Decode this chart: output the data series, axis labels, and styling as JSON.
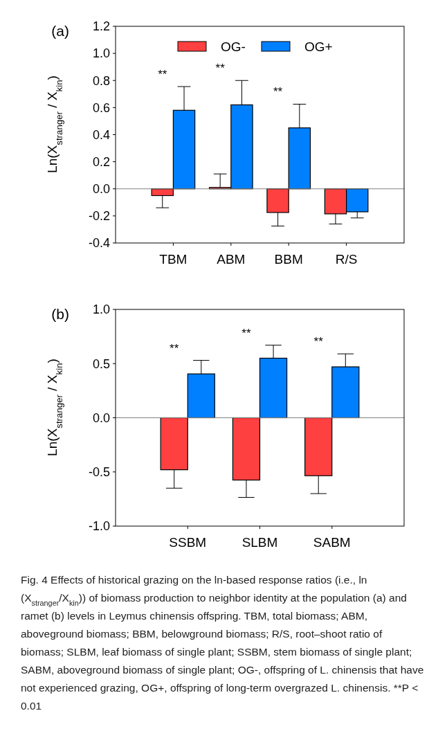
{
  "chart_data": [
    {
      "type": "bar",
      "title": "(a)",
      "ylabel": "Ln(X$_{stranger}$ / X$_{kin}$)",
      "categories": [
        "TBM",
        "ABM",
        "BBM",
        "R/S"
      ],
      "series": [
        {
          "name": "OG-",
          "color": "#ff4040",
          "values": [
            -0.05,
            0.01,
            -0.175,
            -0.185
          ],
          "errors": [
            [
              -0.14,
              -0.05
            ],
            [
              0.01,
              0.11
            ],
            [
              -0.275,
              -0.175
            ],
            [
              -0.26,
              -0.185
            ]
          ]
        },
        {
          "name": "OG+",
          "color": "#0080ff",
          "values": [
            0.58,
            0.62,
            0.45,
            -0.17
          ],
          "errors": [
            [
              0.58,
              0.755
            ],
            [
              0.62,
              0.8
            ],
            [
              0.45,
              0.625
            ],
            [
              -0.215,
              -0.17
            ]
          ]
        }
      ],
      "ylim": [
        -0.4,
        1.2
      ],
      "yticks": [
        {
          "value": -0.4,
          "label": "-0.4"
        },
        {
          "value": -0.2,
          "label": "-0.2"
        },
        {
          "value": 0,
          "label": "0.0"
        },
        {
          "value": 0.2,
          "label": "0.2"
        },
        {
          "value": 0.4,
          "label": "0.4"
        },
        {
          "value": 0.6,
          "label": "0.6"
        },
        {
          "value": 0.8,
          "label": "0.8"
        },
        {
          "value": 1,
          "label": "1.0"
        },
        {
          "value": 1.2,
          "label": "1.2"
        }
      ],
      "ref_lines": [
        {
          "axis": "y",
          "value": 0,
          "color": "#808080"
        }
      ],
      "annotations": [
        "**",
        "**",
        "**"
      ],
      "legend": "top",
      "grid": false
    },
    {
      "type": "bar",
      "title": "(b)",
      "ylabel": "Ln(X$_{stranger}$ / X$_{kin}$)",
      "categories": [
        "SSBM",
        "SLBM",
        "SABM"
      ],
      "series": [
        {
          "color": "#ff4040",
          "values": [
            -0.48,
            -0.575,
            -0.535
          ],
          "errors": [
            [
              -0.65,
              -0.48
            ],
            [
              -0.735,
              -0.575
            ],
            [
              -0.7,
              -0.535
            ]
          ]
        },
        {
          "color": "#0080ff",
          "values": [
            0.405,
            0.55,
            0.47
          ],
          "errors": [
            [
              0.405,
              0.53
            ],
            [
              0.55,
              0.67
            ],
            [
              0.47,
              0.59
            ]
          ]
        }
      ],
      "ylim": [
        -1,
        1
      ],
      "yticks": [
        {
          "value": -1,
          "label": "-1.0"
        },
        {
          "value": -0.5,
          "label": "-0.5"
        },
        {
          "value": 0,
          "label": "0.0"
        },
        {
          "value": 0.5,
          "label": "0.5"
        },
        {
          "value": 1,
          "label": "1.0"
        }
      ],
      "ref_lines": [
        {
          "axis": "y",
          "value": 0,
          "color": "#808080"
        }
      ],
      "annotations": [
        "**",
        "**",
        "**",
        "Fig. 4  Effects of historical grazing on the ln-based response ratios (i.e., ln (X$_{stranger}$/X$_{kin}$)) of biomass production to neighbor identity at the population (a) and ramet (b) levels in Leymus chinensis offspring. TBM, total biomass; ABM, aboveground biomass; BBM, belowground biomass; R/S, root–shoot ratio of biomass; SLBM, leaf biomass of single plant; SSBM, stem biomass of single plant; SABM, aboveground biomass of single plant; OG-, offspring of L. chinensis that have not experienced grazing, OG+, offspring of long-term overgrazed L. chinensis. **P < 0.01"
      ],
      "grid": false
    }
  ]
}
